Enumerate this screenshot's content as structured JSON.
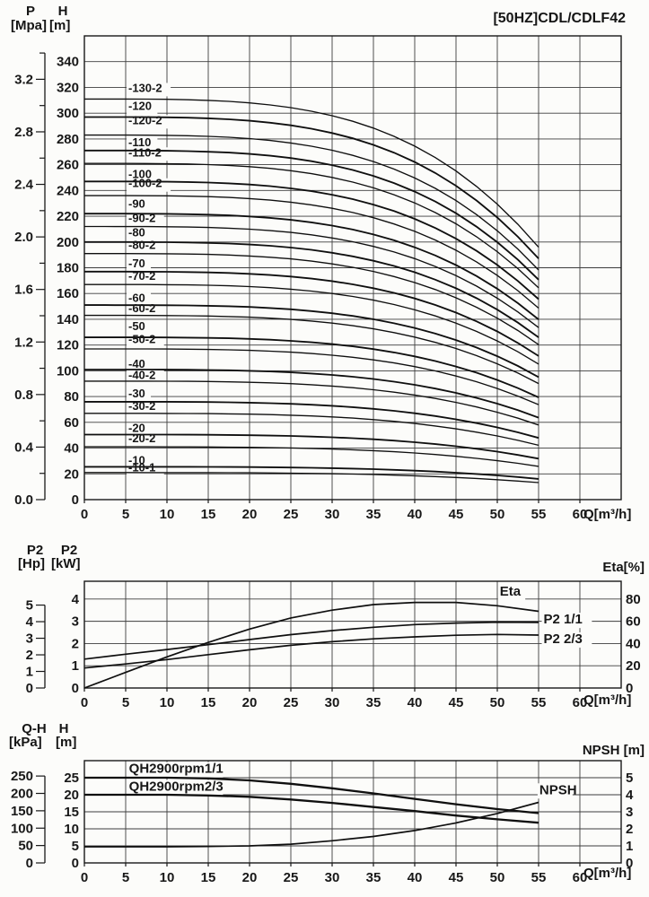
{
  "title": "[50HZ]CDL/CDLF42",
  "colors": {
    "ink": "#181818",
    "grid": "#3d3d3d",
    "curve": "#0f0f0f",
    "background": "#fcfcfa"
  },
  "x_axis": {
    "unit_label": "Q[m³/h]",
    "tick_labels": [
      "0",
      "5",
      "10",
      "15",
      "20",
      "25",
      "30",
      "35",
      "40",
      "45",
      "50",
      "55",
      "60"
    ],
    "min": 0,
    "max": 65,
    "tick_step": 5,
    "grid": true
  },
  "chart_data": [
    {
      "id": "head-capacity",
      "type": "line",
      "title": "[50HZ]CDL/CDLF42",
      "xlabel": "Q[m³/h]",
      "y1": {
        "name": "H",
        "unit": "[m]",
        "min": 0,
        "max": 360,
        "grid_step": 20,
        "tick_labels": [
          "0",
          "20",
          "40",
          "60",
          "80",
          "100",
          "120",
          "140",
          "160",
          "180",
          "200",
          "220",
          "240",
          "260",
          "280",
          "300",
          "320",
          "340"
        ]
      },
      "y2": {
        "name": "P",
        "unit": "[Mpa]",
        "m_per_unit": 101.97,
        "minor_step": 0.2,
        "tick_labels": [
          "0.0",
          "0.4",
          "0.8",
          "1.2",
          "1.6",
          "2.0",
          "2.4",
          "2.8",
          "3.2"
        ]
      },
      "curve_model": {
        "q_start": 0,
        "q_end": 55,
        "end_ratio": 0.63,
        "exponent": 3.6
      },
      "series": [
        {
          "label": "-130-2",
          "shutoff_head_m": 311,
          "label_at_m": 320
        },
        {
          "label": "-120",
          "shutoff_head_m": 297,
          "label_at_m": 306
        },
        {
          "label": "-120-2",
          "shutoff_head_m": 283,
          "label_at_m": 295
        },
        {
          "label": "-110",
          "shutoff_head_m": 271,
          "label_at_m": 278
        },
        {
          "label": "-110-2",
          "shutoff_head_m": 261,
          "label_at_m": 270
        },
        {
          "label": "-100",
          "shutoff_head_m": 247,
          "label_at_m": 253
        },
        {
          "label": "-100-2",
          "shutoff_head_m": 236,
          "label_at_m": 246
        },
        {
          "label": "-90",
          "shutoff_head_m": 222,
          "label_at_m": 230
        },
        {
          "label": "-90-2",
          "shutoff_head_m": 212,
          "label_at_m": 219
        },
        {
          "label": "-80",
          "shutoff_head_m": 200,
          "label_at_m": 208
        },
        {
          "label": "-80-2",
          "shutoff_head_m": 191,
          "label_at_m": 198
        },
        {
          "label": "-70",
          "shutoff_head_m": 177,
          "label_at_m": 184
        },
        {
          "label": "-70-2",
          "shutoff_head_m": 167,
          "label_at_m": 174
        },
        {
          "label": "-60",
          "shutoff_head_m": 151,
          "label_at_m": 157
        },
        {
          "label": "-60-2",
          "shutoff_head_m": 143,
          "label_at_m": 149
        },
        {
          "label": "-50",
          "shutoff_head_m": 126,
          "label_at_m": 135
        },
        {
          "label": "-50-2",
          "shutoff_head_m": 117,
          "label_at_m": 125
        },
        {
          "label": "-40",
          "shutoff_head_m": 101,
          "label_at_m": 106
        },
        {
          "label": "-40-2",
          "shutoff_head_m": 92,
          "label_at_m": 97
        },
        {
          "label": "-30",
          "shutoff_head_m": 76,
          "label_at_m": 83
        },
        {
          "label": "-30-2",
          "shutoff_head_m": 67,
          "label_at_m": 73
        },
        {
          "label": "-20",
          "shutoff_head_m": 50.5,
          "label_at_m": 56
        },
        {
          "label": "-20-2",
          "shutoff_head_m": 41,
          "label_at_m": 48
        },
        {
          "label": "-10",
          "shutoff_head_m": 25.5,
          "label_at_m": 31
        },
        {
          "label": "-10-1",
          "shutoff_head_m": 21,
          "label_at_m": 25.5
        }
      ]
    },
    {
      "id": "power-efficiency",
      "type": "line",
      "xlabel": "Q[m³/h]",
      "y1": {
        "name": "P2",
        "unit": "[kW]",
        "min": 0,
        "max": 4.8,
        "grid_step": 1,
        "tick_labels": [
          "0",
          "1",
          "2",
          "3",
          "4"
        ]
      },
      "y2": {
        "name": "P2",
        "unit": "[Hp]",
        "kw_per_hp": 0.7457,
        "tick_labels": [
          "0",
          "1",
          "2",
          "3",
          "4",
          "5"
        ]
      },
      "y_right": {
        "label": "Eta[%]",
        "eta_per_kw": 20,
        "tick_labels": [
          "0",
          "20",
          "40",
          "60",
          "80"
        ]
      },
      "x_values": [
        0,
        5,
        10,
        15,
        20,
        25,
        30,
        35,
        40,
        45,
        50,
        55
      ],
      "series": [
        {
          "label": "Eta",
          "axis": "eta",
          "values": [
            0,
            14,
            28,
            41,
            53,
            63,
            70,
            75,
            77,
            77,
            74,
            69
          ],
          "label_pos": {
            "q": 50.3,
            "v": 87,
            "anchor": "start"
          }
        },
        {
          "label": "P2 1/1",
          "axis": "kw",
          "values": [
            1.3,
            1.52,
            1.73,
            1.95,
            2.18,
            2.4,
            2.58,
            2.73,
            2.85,
            2.92,
            2.96,
            2.95
          ],
          "label_pos": {
            "q": 55.6,
            "v": 3.1,
            "anchor": "start"
          }
        },
        {
          "label": "P2 2/3",
          "axis": "kw",
          "values": [
            0.9,
            1.08,
            1.28,
            1.5,
            1.72,
            1.92,
            2.08,
            2.21,
            2.3,
            2.37,
            2.41,
            2.38
          ],
          "label_pos": {
            "q": 55.6,
            "v": 2.22,
            "anchor": "start"
          }
        }
      ]
    },
    {
      "id": "qh-npsh",
      "type": "line",
      "xlabel": "Q[m³/h]",
      "y1": {
        "name": "H",
        "unit": "[m]",
        "min": 0,
        "max": 30,
        "grid_step": 5,
        "tick_labels": [
          "0",
          "5",
          "10",
          "15",
          "20",
          "25"
        ]
      },
      "y2": {
        "name": "Q-H",
        "unit": "[kPa]",
        "m_per_unit": 0.10197,
        "tick_labels": [
          "0",
          "50",
          "100",
          "150",
          "200",
          "250"
        ]
      },
      "y_right": {
        "label": "NPSH [m]",
        "m_per_npsh": 5,
        "tick_labels": [
          "0",
          "1",
          "2",
          "3",
          "4",
          "5"
        ]
      },
      "x_values": [
        0,
        5,
        10,
        15,
        20,
        25,
        30,
        35,
        40,
        45,
        50,
        55
      ],
      "series": [
        {
          "label": "QH2900rpm1/1",
          "axis": "m",
          "values": [
            25,
            25,
            25,
            24.8,
            24.2,
            23.2,
            21.9,
            20.4,
            18.8,
            17.2,
            15.8,
            14.6
          ],
          "label_pos": {
            "q": 5.4,
            "v": 27.7,
            "anchor": "start"
          }
        },
        {
          "label": "QH2900rpm2/3",
          "axis": "m",
          "values": [
            20,
            20,
            20,
            19.8,
            19.4,
            18.6,
            17.6,
            16.4,
            15.2,
            13.9,
            12.8,
            11.8
          ],
          "label_pos": {
            "q": 5.4,
            "v": 22.5,
            "anchor": "start"
          }
        },
        {
          "label": "NPSH",
          "axis": "npsh",
          "values": [
            0.95,
            0.95,
            0.95,
            0.97,
            1.0,
            1.1,
            1.3,
            1.55,
            1.9,
            2.35,
            2.9,
            3.55
          ],
          "label_pos": {
            "q": 55.1,
            "v": 4.3,
            "anchor": "start"
          }
        }
      ]
    }
  ]
}
